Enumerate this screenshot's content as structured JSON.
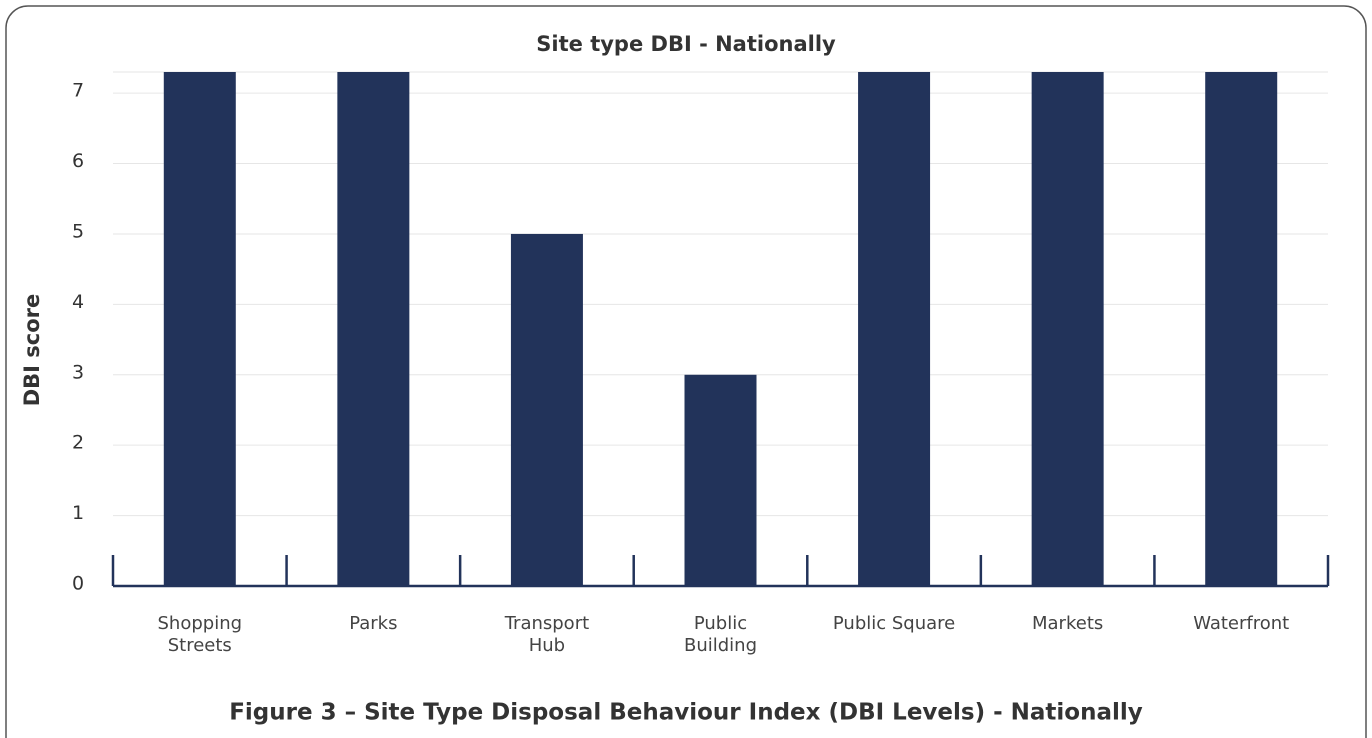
{
  "chart_data": {
    "type": "bar",
    "title": "Site type DBI - Nationally",
    "y_label": "DBI score",
    "caption": "Figure 3 – Site Type Disposal Behaviour Index (DBI Levels) - Nationally",
    "categories": [
      "Shopping\nStreets",
      "Parks",
      "Transport\nHub",
      "Public\nBuilding",
      "Public Square",
      "Markets",
      "Waterfront"
    ],
    "values": [
      7.3,
      7.3,
      5,
      3,
      7.3,
      7.3,
      7.3
    ],
    "color": "#22335a",
    "ylim": [
      0,
      7.3
    ],
    "yticks": [
      0,
      1,
      2,
      3,
      4,
      5,
      6,
      7
    ],
    "grid": true
  }
}
